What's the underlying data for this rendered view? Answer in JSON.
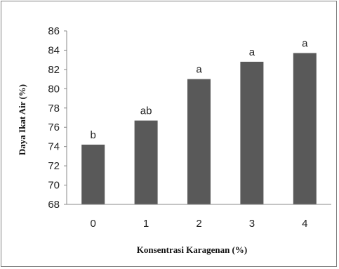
{
  "chart_data": {
    "type": "bar",
    "categories": [
      "0",
      "1",
      "2",
      "3",
      "4"
    ],
    "values": [
      74.2,
      76.7,
      81.0,
      82.8,
      83.7
    ],
    "data_labels": [
      "b",
      "ab",
      "a",
      "a",
      "a"
    ],
    "title": "",
    "xlabel": "Konsentrasi Karagenan (%)",
    "ylabel": "Daya Ikat Air (%)",
    "ylim": [
      68,
      86
    ],
    "yticks": [
      68,
      70,
      72,
      74,
      76,
      78,
      80,
      82,
      84,
      86
    ],
    "grid": false,
    "legend": "none",
    "bar_color": "#595959",
    "axis_color": "#888888"
  }
}
